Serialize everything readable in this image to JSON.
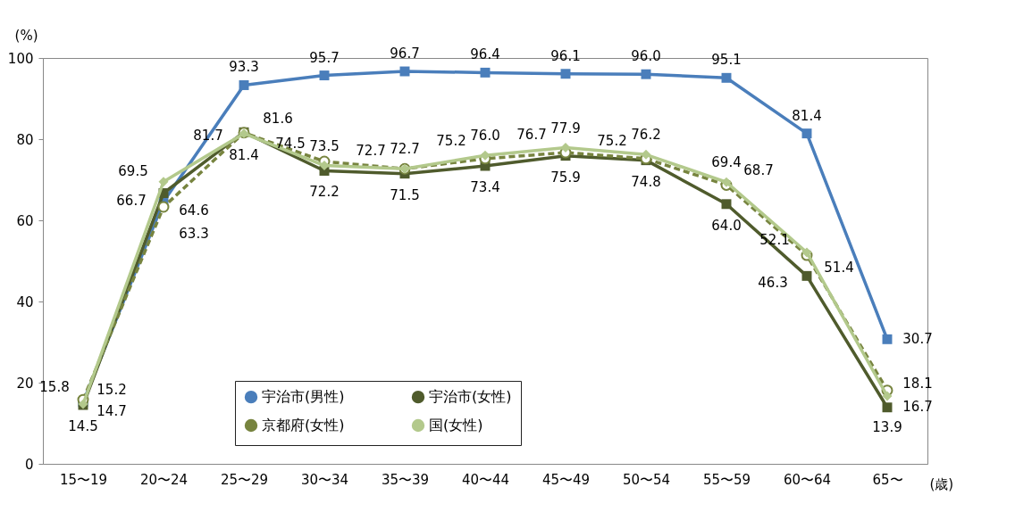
{
  "chart_data": {
    "type": "line",
    "ylabel": "(%)",
    "xlabel": "(歳)",
    "categories": [
      "15〜19",
      "20〜24",
      "25〜29",
      "30〜34",
      "35〜39",
      "40〜44",
      "45〜49",
      "50〜54",
      "55〜59",
      "60〜64",
      "65〜"
    ],
    "ylim": [
      0,
      100
    ],
    "yticks": [
      0,
      20,
      40,
      60,
      80,
      100
    ],
    "grid": false,
    "legend": "bottom",
    "series": [
      {
        "name": "宇治市(男性)",
        "color": "#4a7ebb",
        "marker": "square",
        "line_style": "solid",
        "values": [
          15.2,
          64.6,
          93.3,
          95.7,
          96.7,
          96.4,
          96.1,
          96.0,
          95.1,
          81.4,
          30.7
        ],
        "value_labels": [
          "15.2",
          "64.6",
          "93.3",
          "95.7",
          "96.7",
          "96.4",
          "96.1",
          "96.0",
          "95.1",
          "81.4",
          "30.7"
        ]
      },
      {
        "name": "宇治市(女性)",
        "color": "#4f5b2c",
        "marker": "square",
        "line_style": "solid",
        "values": [
          14.5,
          66.7,
          81.7,
          72.2,
          71.5,
          73.4,
          75.9,
          74.8,
          64.0,
          46.3,
          13.9
        ],
        "value_labels": [
          "14.5",
          "66.7",
          "81.7",
          "72.2",
          "71.5",
          "73.4",
          "75.9",
          "74.8",
          "64.0",
          "46.3",
          "13.9"
        ]
      },
      {
        "name": "京都府(女性)",
        "color": "#77843f",
        "marker": "circle",
        "line_style": "dashed",
        "values": [
          15.8,
          63.3,
          81.6,
          74.5,
          72.7,
          75.2,
          76.7,
          75.2,
          68.7,
          51.4,
          18.1
        ],
        "value_labels": [
          "15.8",
          "63.3",
          "81.6",
          "74.5",
          "72.7",
          "75.2",
          "76.7",
          "75.2",
          "68.7",
          "51.4",
          "18.1"
        ]
      },
      {
        "name": "国(女性)",
        "color": "#b3c98c",
        "marker": "diamond",
        "line_style": "solid",
        "values": [
          14.7,
          69.5,
          81.4,
          73.5,
          72.7,
          76.0,
          77.9,
          76.2,
          69.4,
          52.1,
          16.7
        ],
        "value_labels": [
          "14.7",
          "69.5",
          "81.4",
          "73.5",
          "72.7",
          "76.0",
          "77.9",
          "76.2",
          "69.4",
          "52.1",
          "16.7"
        ]
      }
    ]
  }
}
